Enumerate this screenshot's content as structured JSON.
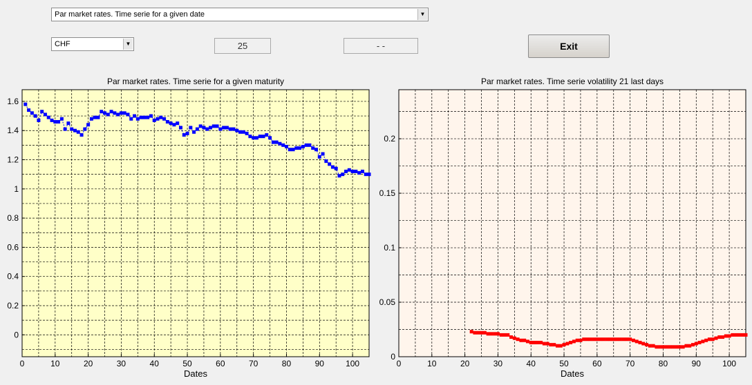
{
  "controls": {
    "mode_select": "Par market rates. Time serie for a given date",
    "currency_select": "CHF",
    "maturity_value": "25",
    "second_value": "- -",
    "exit_label": "Exit"
  },
  "colors": {
    "left_plot_bg": "#ffffc8",
    "right_plot_bg": "#fff5ec",
    "left_series": "#0000ff",
    "right_series": "#ff0000"
  },
  "chart_data": [
    {
      "type": "scatter",
      "title": "Par market rates. Time serie for a given maturity",
      "xlabel": "Dates",
      "ylabel": "",
      "xlim": [
        0,
        105
      ],
      "ylim": [
        -0.15,
        1.68
      ],
      "xticks": [
        0,
        10,
        20,
        30,
        40,
        50,
        60,
        70,
        80,
        90,
        100
      ],
      "yticks": [
        0,
        0.2,
        0.4,
        0.6,
        0.8,
        1,
        1.2,
        1.4,
        1.6
      ],
      "ytick_labels": [
        "0",
        "0.2",
        "0.4",
        "0.6",
        "0.8",
        "1",
        "1.2",
        "1.4",
        "1.6"
      ],
      "grid": true,
      "series": [
        {
          "color": "#0000ff",
          "x": [
            1,
            2,
            3,
            4,
            5,
            6,
            7,
            8,
            9,
            10,
            11,
            12,
            13,
            14,
            15,
            16,
            17,
            18,
            19,
            20,
            21,
            22,
            23,
            24,
            25,
            26,
            27,
            28,
            29,
            30,
            31,
            32,
            33,
            34,
            35,
            36,
            37,
            38,
            39,
            40,
            41,
            42,
            43,
            44,
            45,
            46,
            47,
            48,
            49,
            50,
            51,
            52,
            53,
            54,
            55,
            56,
            57,
            58,
            59,
            60,
            61,
            62,
            63,
            64,
            65,
            66,
            67,
            68,
            69,
            70,
            71,
            72,
            73,
            74,
            75,
            76,
            77,
            78,
            79,
            80,
            81,
            82,
            83,
            84,
            85,
            86,
            87,
            88,
            89,
            90,
            91,
            92,
            93,
            94,
            95,
            96,
            97,
            98,
            99,
            100,
            101,
            102,
            103,
            104,
            105
          ],
          "y": [
            1.58,
            1.54,
            1.52,
            1.5,
            1.47,
            1.53,
            1.51,
            1.49,
            1.47,
            1.46,
            1.46,
            1.48,
            1.41,
            1.45,
            1.41,
            1.4,
            1.39,
            1.37,
            1.41,
            1.44,
            1.48,
            1.49,
            1.49,
            1.53,
            1.52,
            1.51,
            1.53,
            1.52,
            1.51,
            1.52,
            1.52,
            1.51,
            1.48,
            1.5,
            1.48,
            1.49,
            1.49,
            1.49,
            1.5,
            1.47,
            1.48,
            1.49,
            1.48,
            1.46,
            1.45,
            1.44,
            1.45,
            1.42,
            1.37,
            1.38,
            1.42,
            1.39,
            1.41,
            1.43,
            1.42,
            1.41,
            1.42,
            1.43,
            1.43,
            1.41,
            1.42,
            1.42,
            1.41,
            1.41,
            1.4,
            1.39,
            1.39,
            1.38,
            1.36,
            1.35,
            1.35,
            1.36,
            1.36,
            1.37,
            1.35,
            1.32,
            1.32,
            1.31,
            1.3,
            1.29,
            1.27,
            1.27,
            1.28,
            1.28,
            1.29,
            1.3,
            1.3,
            1.28,
            1.27,
            1.22,
            1.24,
            1.19,
            1.17,
            1.15,
            1.14,
            1.09,
            1.1,
            1.12,
            1.13,
            1.12,
            1.12,
            1.11,
            1.12,
            1.1,
            1.1
          ]
        }
      ]
    },
    {
      "type": "scatter",
      "title": "Par market rates. Time serie volatility 21 last days",
      "xlabel": "Dates",
      "ylabel": "",
      "xlim": [
        0,
        105
      ],
      "ylim": [
        0,
        0.245
      ],
      "xticks": [
        0,
        10,
        20,
        30,
        40,
        50,
        60,
        70,
        80,
        90,
        100
      ],
      "yticks": [
        0,
        0.05,
        0.1,
        0.15,
        0.2
      ],
      "ytick_labels": [
        "0",
        "0.05",
        "0.1",
        "0.15",
        "0.2"
      ],
      "grid": true,
      "series": [
        {
          "color": "#ff0000",
          "x": [
            22,
            23,
            24,
            25,
            26,
            27,
            28,
            29,
            30,
            31,
            32,
            33,
            34,
            35,
            36,
            37,
            38,
            39,
            40,
            41,
            42,
            43,
            44,
            45,
            46,
            47,
            48,
            49,
            50,
            51,
            52,
            53,
            54,
            55,
            56,
            57,
            58,
            59,
            60,
            61,
            62,
            63,
            64,
            65,
            66,
            67,
            68,
            69,
            70,
            71,
            72,
            73,
            74,
            75,
            76,
            77,
            78,
            79,
            80,
            81,
            82,
            83,
            84,
            85,
            86,
            87,
            88,
            89,
            90,
            91,
            92,
            93,
            94,
            95,
            96,
            97,
            98,
            99,
            100,
            101,
            102,
            103,
            104,
            105
          ],
          "y": [
            0.023,
            0.022,
            0.022,
            0.022,
            0.022,
            0.021,
            0.021,
            0.021,
            0.021,
            0.02,
            0.02,
            0.02,
            0.018,
            0.017,
            0.016,
            0.015,
            0.015,
            0.014,
            0.013,
            0.013,
            0.013,
            0.013,
            0.012,
            0.012,
            0.011,
            0.011,
            0.01,
            0.01,
            0.011,
            0.012,
            0.013,
            0.014,
            0.015,
            0.015,
            0.016,
            0.016,
            0.016,
            0.016,
            0.016,
            0.016,
            0.016,
            0.016,
            0.016,
            0.016,
            0.016,
            0.016,
            0.016,
            0.016,
            0.016,
            0.015,
            0.014,
            0.013,
            0.012,
            0.011,
            0.01,
            0.01,
            0.009,
            0.009,
            0.009,
            0.009,
            0.009,
            0.009,
            0.009,
            0.009,
            0.009,
            0.01,
            0.01,
            0.011,
            0.012,
            0.013,
            0.014,
            0.015,
            0.016,
            0.016,
            0.017,
            0.018,
            0.018,
            0.019,
            0.019,
            0.02,
            0.02,
            0.02,
            0.02,
            0.02
          ]
        }
      ]
    }
  ]
}
